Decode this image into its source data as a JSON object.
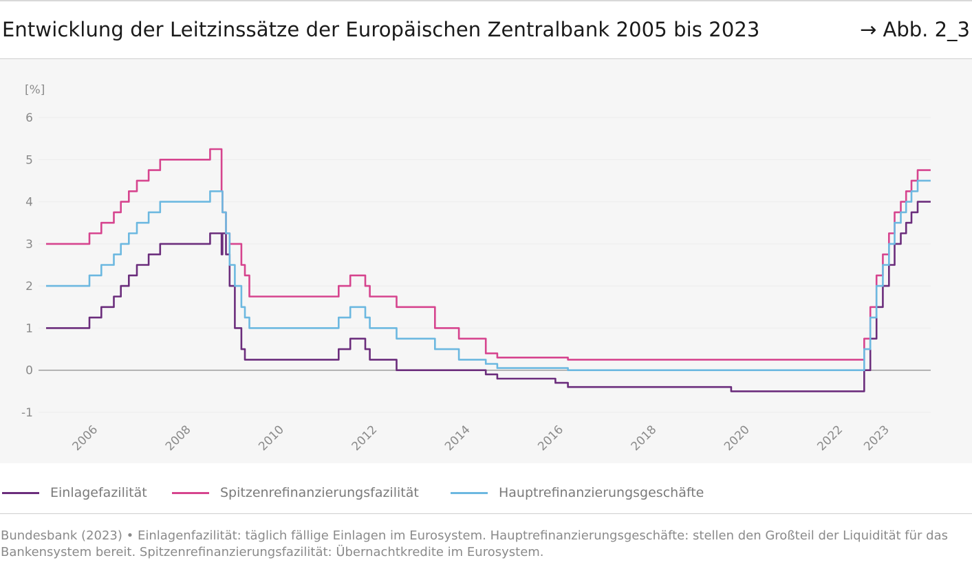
{
  "header": {
    "title": "Entwicklung der Leitzinssätze der Europäischen Zentralbank 2005 bis 2023",
    "figure_ref": "→ Abb. 2_3"
  },
  "note": "Bundesbank (2023) • Einlagenfazilität: täglich fällige Einlagen im Eurosystem. Hauptrefinanzierungsgeschäfte: stellen den Großteil der Liquidität für das Bankensystem bereit. Spitzenrefinanzierungsfazilität: Übernachtkredite im Eurosystem.",
  "chart_data": {
    "type": "line",
    "title": "Entwicklung der Leitzinssätze der Europäischen Zentralbank 2005 bis 2023",
    "xlabel": "",
    "ylabel": "[%]",
    "ylim": [
      -1,
      6
    ],
    "yticks": [
      "-1",
      "0",
      "1",
      "2",
      "3",
      "4",
      "5",
      "6"
    ],
    "xticks": [
      "2006",
      "2008",
      "2010",
      "2012",
      "2014",
      "2016",
      "2018",
      "2020",
      "2022",
      "2023"
    ],
    "grid": true,
    "legend_position": "bottom",
    "series": [
      {
        "name": "Einlagefazilität",
        "color": "#6b2d7c",
        "step": true,
        "x": [
          "2005-01-01",
          "2005-12-06",
          "2006-03-08",
          "2006-06-15",
          "2006-08-09",
          "2006-10-11",
          "2006-12-13",
          "2007-03-14",
          "2007-06-13",
          "2008-07-09",
          "2008-10-08",
          "2008-10-15",
          "2008-11-12",
          "2008-12-10",
          "2009-01-21",
          "2009-03-11",
          "2009-04-08",
          "2011-04-13",
          "2011-07-13",
          "2011-11-09",
          "2011-12-14",
          "2012-07-11",
          "2014-06-11",
          "2014-09-10",
          "2015-12-09",
          "2016-03-16",
          "2019-09-18",
          "2022-07-27",
          "2022-09-14",
          "2022-11-02",
          "2022-12-21",
          "2023-02-08",
          "2023-03-22",
          "2023-05-10",
          "2023-06-21",
          "2023-08-02",
          "2023-09-20",
          "2023-12-31"
        ],
        "values": [
          1.0,
          1.25,
          1.5,
          1.75,
          2.0,
          2.25,
          2.5,
          2.75,
          3.0,
          3.25,
          2.75,
          3.25,
          2.75,
          2.0,
          1.0,
          0.5,
          0.25,
          0.5,
          0.75,
          0.5,
          0.25,
          0.0,
          -0.1,
          -0.2,
          -0.3,
          -0.4,
          -0.5,
          0.0,
          0.75,
          1.5,
          2.0,
          2.5,
          3.0,
          3.25,
          3.5,
          3.75,
          4.0,
          4.0
        ]
      },
      {
        "name": "Spitzenrefinanzierungsfazilität",
        "color": "#d6448e",
        "step": true,
        "x": [
          "2005-01-01",
          "2005-12-06",
          "2006-03-08",
          "2006-06-15",
          "2006-08-09",
          "2006-10-11",
          "2006-12-13",
          "2007-03-14",
          "2007-06-13",
          "2008-07-09",
          "2008-10-08",
          "2008-10-15",
          "2008-11-12",
          "2008-12-10",
          "2009-01-21",
          "2009-03-11",
          "2009-04-08",
          "2009-05-13",
          "2011-04-13",
          "2011-07-13",
          "2011-11-09",
          "2011-12-14",
          "2012-07-11",
          "2013-05-08",
          "2013-11-13",
          "2014-06-11",
          "2014-09-10",
          "2016-03-16",
          "2022-07-27",
          "2022-09-14",
          "2022-11-02",
          "2022-12-21",
          "2023-02-08",
          "2023-03-22",
          "2023-05-10",
          "2023-06-21",
          "2023-08-02",
          "2023-09-20",
          "2023-12-31"
        ],
        "values": [
          3.0,
          3.25,
          3.5,
          3.75,
          4.0,
          4.25,
          4.5,
          4.75,
          5.0,
          5.25,
          4.25,
          3.75,
          3.25,
          3.0,
          3.0,
          2.5,
          2.25,
          1.75,
          2.0,
          2.25,
          2.0,
          1.75,
          1.5,
          1.0,
          0.75,
          0.4,
          0.3,
          0.25,
          0.75,
          1.5,
          2.25,
          2.75,
          3.25,
          3.75,
          4.0,
          4.25,
          4.5,
          4.75,
          4.75
        ]
      },
      {
        "name": "Hauptrefinanzierungsgeschäfte",
        "color": "#6cb8e0",
        "step": true,
        "x": [
          "2005-01-01",
          "2005-12-06",
          "2006-03-08",
          "2006-06-15",
          "2006-08-09",
          "2006-10-11",
          "2006-12-13",
          "2007-03-14",
          "2007-06-13",
          "2008-07-09",
          "2008-10-15",
          "2008-11-12",
          "2008-12-10",
          "2009-01-21",
          "2009-03-11",
          "2009-04-08",
          "2009-05-13",
          "2011-04-13",
          "2011-07-13",
          "2011-11-09",
          "2011-12-14",
          "2012-07-11",
          "2013-05-08",
          "2013-11-13",
          "2014-06-11",
          "2014-09-10",
          "2016-03-16",
          "2022-07-27",
          "2022-09-14",
          "2022-11-02",
          "2022-12-21",
          "2023-02-08",
          "2023-03-22",
          "2023-05-10",
          "2023-06-21",
          "2023-08-02",
          "2023-09-20",
          "2023-12-31"
        ],
        "values": [
          2.0,
          2.25,
          2.5,
          2.75,
          3.0,
          3.25,
          3.5,
          3.75,
          4.0,
          4.25,
          3.75,
          3.25,
          2.5,
          2.0,
          1.5,
          1.25,
          1.0,
          1.25,
          1.5,
          1.25,
          1.0,
          0.75,
          0.5,
          0.25,
          0.15,
          0.05,
          0.0,
          0.5,
          1.25,
          2.0,
          2.5,
          3.0,
          3.5,
          3.75,
          4.0,
          4.25,
          4.5,
          4.5
        ]
      }
    ]
  }
}
